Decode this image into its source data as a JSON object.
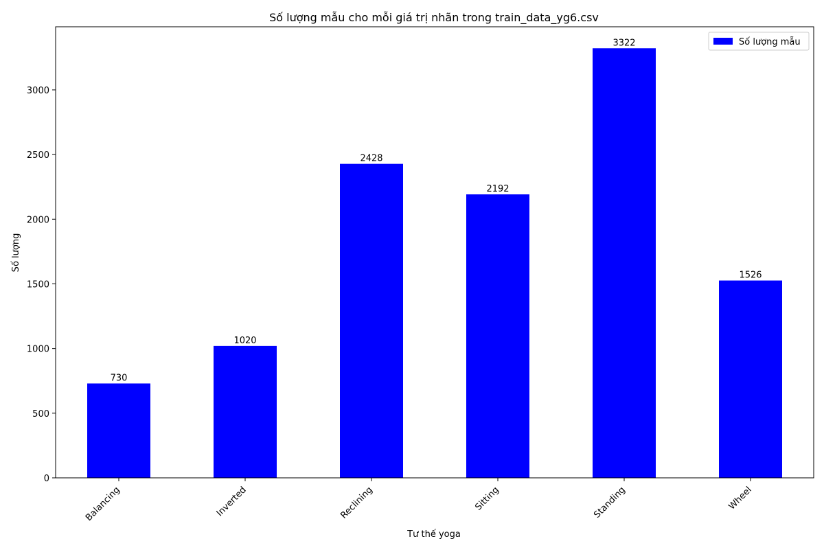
{
  "chart_data": {
    "type": "bar",
    "title": "Số lượng mẫu cho mỗi giá trị nhãn trong train_data_yg6.csv",
    "xlabel": "Tư thế yoga",
    "ylabel": "Số lượng",
    "categories": [
      "Balancing",
      "Inverted",
      "Reclining",
      "Sitting",
      "Standing",
      "Wheel"
    ],
    "series": [
      {
        "name": "Số lượng mẫu",
        "values": [
          730,
          1020,
          2428,
          2192,
          3322,
          1526
        ],
        "color": "#0000ff"
      }
    ],
    "yticks": [
      0,
      500,
      1000,
      1500,
      2000,
      2500,
      3000
    ],
    "ylim": [
      0,
      3488
    ],
    "grid": false,
    "legend_position": "top-right",
    "data_labels": true
  }
}
